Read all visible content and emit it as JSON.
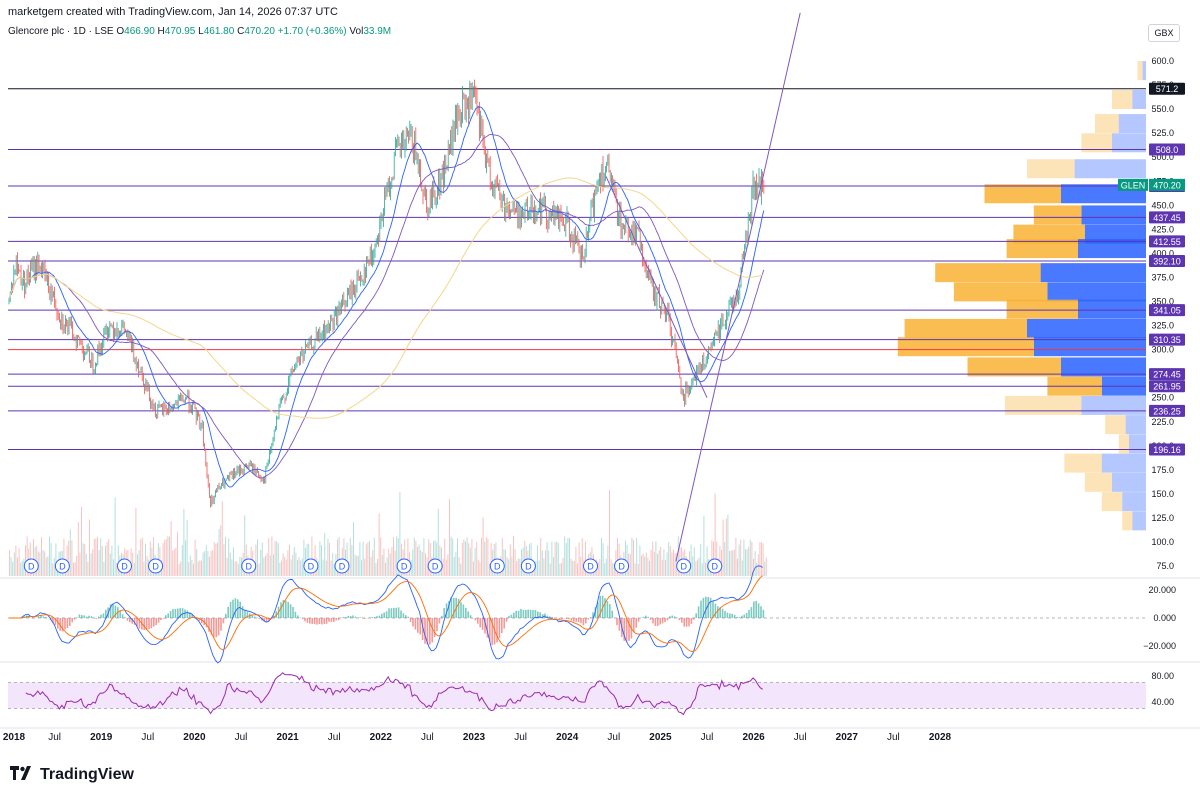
{
  "header": {
    "credit": "marketgem created with TradingView.com, Jan 14, 2026 07:37 UTC"
  },
  "legend": {
    "symbol": "Glencore plc · 1D · LSE",
    "o_label": "O",
    "o": "466.90",
    "h_label": "H",
    "h": "470.95",
    "l_label": "L",
    "l": "461.80",
    "c_label": "C",
    "c": "470.20",
    "change": "+1.70 (+0.36%)",
    "vol_label": "Vol",
    "vol": "33.9M"
  },
  "currency_button": "GBX",
  "brand": {
    "name": "TradingView",
    "logo": "tradingview-logo"
  },
  "colors": {
    "up": "#26a69a",
    "down": "#ef5350",
    "sma_fast": "#2962ff",
    "sma_mid": "#7e57c2",
    "sma_slow": "#f5d68c",
    "trend": "#7e57c2",
    "hline": "#5e35b1",
    "red_line": "#f23645",
    "black_line": "#131722",
    "vp_up": "#2962ff",
    "vp_down": "#f9b234",
    "rsi": "#9c27b0",
    "rsi_band": "#f3e5fb",
    "macd": "#2962ff",
    "signal": "#ff6d00",
    "last_price": "#089981"
  },
  "chart_data": {
    "type": "candlestick",
    "symbol": "GLEN",
    "timeframe": "1D",
    "x_ticks": [
      "2018",
      "Jul",
      "2019",
      "Jul",
      "2020",
      "Jul",
      "2021",
      "Jul",
      "2022",
      "Jul",
      "2023",
      "Jul",
      "2024",
      "Jul",
      "2025",
      "Jul",
      "2026",
      "Jul",
      "2027",
      "Jul",
      "2028"
    ],
    "y_ticks": [
      75,
      100,
      125,
      150,
      175,
      200,
      225,
      250,
      275,
      300,
      325,
      350,
      375,
      400,
      425,
      450,
      475,
      500,
      525,
      550,
      575,
      600
    ],
    "ylim": [
      65,
      620
    ],
    "price_path": [
      [
        "2018-01",
        345
      ],
      [
        "2018-02",
        390
      ],
      [
        "2018-03",
        370
      ],
      [
        "2018-05",
        390
      ],
      [
        "2018-06",
        370
      ],
      [
        "2018-08",
        330
      ],
      [
        "2018-10",
        310
      ],
      [
        "2018-12",
        285
      ],
      [
        "2019-02",
        325
      ],
      [
        "2019-04",
        320
      ],
      [
        "2019-06",
        280
      ],
      [
        "2019-08",
        235
      ],
      [
        "2019-10",
        240
      ],
      [
        "2019-12",
        250
      ],
      [
        "2020-02",
        220
      ],
      [
        "2020-03",
        140
      ],
      [
        "2020-04",
        155
      ],
      [
        "2020-06",
        170
      ],
      [
        "2020-08",
        180
      ],
      [
        "2020-10",
        165
      ],
      [
        "2020-12",
        240
      ],
      [
        "2021-02",
        285
      ],
      [
        "2021-04",
        305
      ],
      [
        "2021-06",
        320
      ],
      [
        "2021-08",
        345
      ],
      [
        "2021-10",
        370
      ],
      [
        "2021-12",
        400
      ],
      [
        "2022-01",
        435
      ],
      [
        "2022-03",
        505
      ],
      [
        "2022-05",
        520
      ],
      [
        "2022-07",
        450
      ],
      [
        "2022-09",
        480
      ],
      [
        "2022-11",
        545
      ],
      [
        "2023-01",
        560
      ],
      [
        "2023-03",
        480
      ],
      [
        "2023-05",
        450
      ],
      [
        "2023-07",
        440
      ],
      [
        "2023-09",
        450
      ],
      [
        "2023-11",
        440
      ],
      [
        "2024-01",
        430
      ],
      [
        "2024-03",
        390
      ],
      [
        "2024-05",
        480
      ],
      [
        "2024-06",
        490
      ],
      [
        "2024-08",
        430
      ],
      [
        "2024-10",
        420
      ],
      [
        "2024-12",
        360
      ],
      [
        "2025-02",
        335
      ],
      [
        "2025-04",
        250
      ],
      [
        "2025-05",
        270
      ],
      [
        "2025-07",
        290
      ],
      [
        "2025-09",
        330
      ],
      [
        "2025-11",
        360
      ],
      [
        "2026-01",
        470
      ]
    ],
    "horizontal_levels": [
      {
        "label": "571.2",
        "value": 571.2,
        "style": "black"
      },
      {
        "label": "508.0",
        "value": 508.0,
        "style": "purple"
      },
      {
        "label": "470.00",
        "value": 470.0,
        "style": "purple"
      },
      {
        "label": "437.45",
        "value": 437.45,
        "style": "purple"
      },
      {
        "label": "412.55",
        "value": 412.55,
        "style": "purple"
      },
      {
        "label": "392.10",
        "value": 392.1,
        "style": "purple"
      },
      {
        "label": "341.05",
        "value": 341.05,
        "style": "purple"
      },
      {
        "label": "310.35",
        "value": 310.35,
        "style": "purple"
      },
      {
        "value": 300.0,
        "style": "red"
      },
      {
        "label": "274.45",
        "value": 274.45,
        "style": "purple"
      },
      {
        "label": "261.95",
        "value": 261.95,
        "style": "purple"
      },
      {
        "label": "236.25",
        "value": 236.25,
        "style": "purple"
      },
      {
        "label": "196.16",
        "value": 196.16,
        "style": "purple"
      }
    ],
    "last_price": {
      "symbol_tag": "GLEN",
      "label": "470.20",
      "value": 470.2
    },
    "trendlines": [
      {
        "from": [
          "2025-03",
          80
        ],
        "to": [
          "2026-07",
          650
        ]
      },
      {
        "from": [
          "2024-06",
          480
        ],
        "to": [
          "2025-07",
          250
        ]
      }
    ],
    "dividend_marker": "D",
    "dividend_markers_at": [
      "2018-04",
      "2018-08",
      "2019-04",
      "2019-08",
      "2020-08",
      "2021-04",
      "2021-08",
      "2022-04",
      "2022-08",
      "2023-04",
      "2023-08",
      "2024-04",
      "2024-08",
      "2025-04",
      "2025-08"
    ],
    "volume_profile": {
      "rows": [
        {
          "price": 590,
          "up": 0.02,
          "down": 0.03
        },
        {
          "price": 560,
          "up": 0.08,
          "down": 0.12
        },
        {
          "price": 535,
          "up": 0.16,
          "down": 0.14
        },
        {
          "price": 515,
          "up": 0.2,
          "down": 0.18
        },
        {
          "price": 488,
          "up": 0.42,
          "down": 0.28
        },
        {
          "price": 462,
          "up": 0.5,
          "down": 0.45
        },
        {
          "price": 440,
          "up": 0.38,
          "down": 0.28
        },
        {
          "price": 420,
          "up": 0.36,
          "down": 0.42
        },
        {
          "price": 405,
          "up": 0.4,
          "down": 0.42
        },
        {
          "price": 380,
          "up": 0.62,
          "down": 0.62
        },
        {
          "price": 360,
          "up": 0.58,
          "down": 0.55
        },
        {
          "price": 342,
          "up": 0.4,
          "down": 0.42
        },
        {
          "price": 322,
          "up": 0.7,
          "down": 0.72
        },
        {
          "price": 303,
          "up": 0.66,
          "down": 0.8
        },
        {
          "price": 282,
          "up": 0.5,
          "down": 0.55
        },
        {
          "price": 262,
          "up": 0.26,
          "down": 0.32
        },
        {
          "price": 242,
          "up": 0.38,
          "down": 0.45
        },
        {
          "price": 222,
          "up": 0.12,
          "down": 0.12
        },
        {
          "price": 202,
          "up": 0.1,
          "down": 0.06
        },
        {
          "price": 182,
          "up": 0.26,
          "down": 0.22
        },
        {
          "price": 162,
          "up": 0.2,
          "down": 0.16
        },
        {
          "price": 142,
          "up": 0.14,
          "down": 0.12
        },
        {
          "price": 122,
          "up": 0.08,
          "down": 0.06
        }
      ]
    },
    "macd": {
      "ticks": [
        "20.000",
        "0.000",
        "−20.000"
      ],
      "values": [
        20,
        0,
        -20
      ]
    },
    "rsi": {
      "ticks": [
        "80.00",
        "40.00"
      ],
      "values": [
        80,
        40
      ],
      "band": [
        30,
        70
      ]
    }
  }
}
